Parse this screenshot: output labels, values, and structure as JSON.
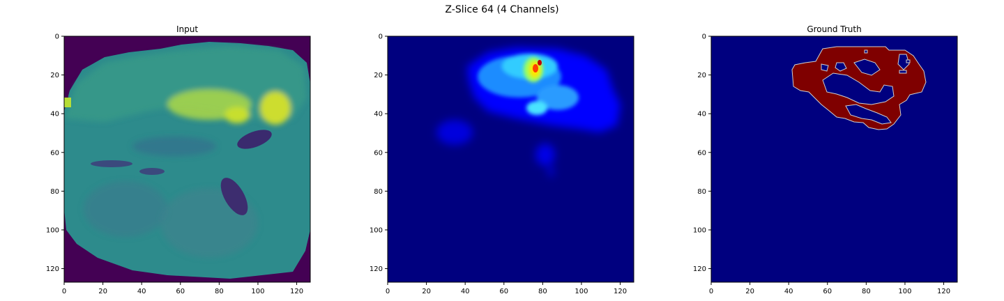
{
  "figure": {
    "title": "Z-Slice 64 (4 Channels)"
  },
  "panels": [
    {
      "title": "Input",
      "colormap": "viridis",
      "background": "#440154"
    },
    {
      "title": "",
      "colormap": "jet",
      "background": "#00007f"
    },
    {
      "title": "Ground Truth",
      "colormap": "jet-binary",
      "background": "#00007f",
      "label_color": "#7f0000"
    }
  ],
  "axes": {
    "x_ticks": [
      "0",
      "20",
      "40",
      "60",
      "80",
      "100",
      "120"
    ],
    "y_ticks": [
      "0",
      "20",
      "40",
      "60",
      "80",
      "100",
      "120"
    ],
    "range": [
      0,
      127
    ]
  }
}
